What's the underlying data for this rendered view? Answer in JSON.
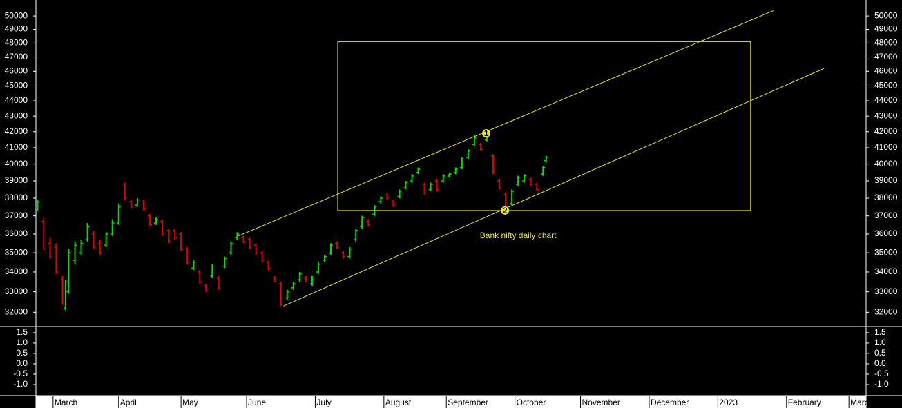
{
  "chart_data": {
    "type": "ohlc",
    "log_scale": true,
    "up_color": "#00e000",
    "down_color": "#e00000",
    "annotation_color": "#e8e820",
    "x": [
      0,
      2,
      4,
      6,
      8,
      9,
      10,
      12,
      14,
      16,
      18,
      20,
      22,
      24,
      26,
      28,
      30,
      32,
      34,
      36,
      38,
      40,
      42,
      44,
      46,
      48,
      50,
      52,
      54,
      56,
      58,
      60,
      62,
      64,
      66,
      68,
      70,
      72,
      74,
      76,
      78,
      80,
      82,
      84,
      86,
      88,
      90,
      92,
      94,
      96,
      98,
      100,
      102,
      104,
      106,
      108,
      110,
      112,
      114,
      116,
      118,
      120,
      122,
      124,
      126,
      128,
      130,
      132,
      134,
      136,
      138,
      140,
      142,
      144,
      146,
      148,
      150,
      152,
      154,
      156,
      158,
      160,
      162,
      163
    ],
    "open": [
      37500,
      36700,
      35500,
      35300,
      33600,
      32200,
      33000,
      34600,
      35000,
      35700,
      36000,
      35500,
      35400,
      36000,
      36600,
      38800,
      37800,
      37600,
      37800,
      37000,
      36600,
      36700,
      36200,
      36200,
      36000,
      35200,
      34200,
      34000,
      33300,
      33800,
      33700,
      34300,
      35000,
      35800,
      35800,
      35700,
      35400,
      35000,
      34500,
      33700,
      33400,
      32700,
      33200,
      33600,
      33700,
      33400,
      34000,
      34600,
      35000,
      35500,
      35000,
      34800,
      35700,
      36400,
      36700,
      37100,
      37800,
      38200,
      37800,
      38100,
      38600,
      39000,
      39500,
      38800,
      38500,
      39000,
      39000,
      39300,
      39500,
      39800,
      40400,
      41200,
      41200,
      41500,
      40500,
      39000,
      38200,
      37700,
      38800,
      39000,
      39100,
      38800,
      39400,
      40200
    ],
    "high": [
      37900,
      36900,
      35800,
      35500,
      33800,
      33600,
      35200,
      35600,
      35700,
      36600,
      36200,
      35700,
      36100,
      36800,
      37700,
      38900,
      37900,
      38000,
      37900,
      37100,
      36900,
      36800,
      36300,
      36300,
      36100,
      35300,
      34600,
      34100,
      33400,
      34400,
      33800,
      34800,
      35600,
      36100,
      35900,
      35800,
      35500,
      35100,
      34600,
      33800,
      33500,
      33100,
      33500,
      34000,
      33800,
      33800,
      34500,
      34900,
      35500,
      35600,
      35100,
      35300,
      36300,
      37000,
      36800,
      37600,
      38100,
      38300,
      37900,
      38500,
      39000,
      39400,
      39800,
      38900,
      38900,
      39100,
      39400,
      39500,
      39800,
      40400,
      40900,
      41800,
      41300,
      41900,
      40600,
      39100,
      38300,
      38500,
      39300,
      39400,
      39200,
      38900,
      39900,
      40500
    ],
    "low": [
      37300,
      35200,
      34700,
      33900,
      32400,
      32100,
      32900,
      34400,
      34900,
      35600,
      35200,
      34900,
      35300,
      35900,
      36500,
      37900,
      37400,
      37500,
      37300,
      36400,
      36500,
      35900,
      35500,
      35700,
      35100,
      34400,
      34100,
      33400,
      33000,
      33700,
      33100,
      34200,
      34900,
      35700,
      35500,
      35200,
      34900,
      34500,
      34100,
      33500,
      32300,
      32600,
      33100,
      33500,
      33500,
      33300,
      33900,
      34500,
      34900,
      35200,
      34700,
      34700,
      35600,
      36300,
      36400,
      37000,
      37700,
      37900,
      37500,
      38000,
      38500,
      38900,
      39400,
      38200,
      38400,
      38400,
      38900,
      39200,
      39400,
      39700,
      40300,
      41100,
      40800,
      41400,
      39400,
      38500,
      37300,
      37600,
      38700,
      38900,
      38700,
      38400,
      39300,
      40100
    ],
    "close": [
      37800,
      35200,
      34800,
      34000,
      32400,
      33500,
      35000,
      35400,
      35500,
      36400,
      35300,
      35000,
      36000,
      36600,
      37500,
      38000,
      37500,
      37900,
      37400,
      36500,
      36800,
      36000,
      35600,
      35800,
      35200,
      34500,
      34500,
      33500,
      33100,
      34300,
      33200,
      34700,
      35500,
      36000,
      35600,
      35300,
      35000,
      34600,
      34200,
      33600,
      32700,
      33000,
      33400,
      33900,
      33600,
      33700,
      34400,
      34800,
      35400,
      35300,
      34800,
      35200,
      36200,
      36900,
      36500,
      37500,
      38000,
      38000,
      37600,
      38400,
      38900,
      39300,
      39700,
      38300,
      38800,
      38500,
      39300,
      39400,
      39700,
      40300,
      40800,
      41600,
      40900,
      41700,
      39500,
      38600,
      37500,
      38400,
      39200,
      39300,
      38800,
      38500,
      39800,
      40400
    ],
    "ylim": [
      31350,
      50950
    ],
    "yticks": [
      32000,
      33000,
      34000,
      35000,
      36000,
      37000,
      38000,
      39000,
      40000,
      41000,
      42000,
      43000,
      44000,
      45000,
      46000,
      47000,
      48000,
      49000,
      50000
    ],
    "xlim": [
      -0.5,
      265.5
    ],
    "xticks": [
      {
        "value": 5,
        "label": "March"
      },
      {
        "value": 26,
        "label": "April"
      },
      {
        "value": 46,
        "label": "May"
      },
      {
        "value": 67,
        "label": "June"
      },
      {
        "value": 89,
        "label": "July"
      },
      {
        "value": 111,
        "label": "August"
      },
      {
        "value": 131,
        "label": "September"
      },
      {
        "value": 153,
        "label": "October"
      },
      {
        "value": 174,
        "label": "November"
      },
      {
        "value": 196,
        "label": "December"
      },
      {
        "value": 218,
        "label": "2023"
      },
      {
        "value": 240,
        "label": "February"
      },
      {
        "value": 260,
        "label": "March"
      }
    ],
    "trendlines": [
      {
        "x": [
          64.4,
          235.8
        ],
        "y": [
          35900,
          50400
        ]
      },
      {
        "x": [
          78.8,
          252
        ],
        "y": [
          32300,
          46200
        ]
      }
    ],
    "box": {
      "x": [
        96.2,
        228.5
      ],
      "y": [
        48100,
        37300
      ]
    },
    "points": [
      {
        "label": "1",
        "x": 143.8,
        "y": 41900
      },
      {
        "label": "2",
        "x": 149.8,
        "y": 37300
      }
    ],
    "annotation": {
      "text": "Bank nifty daily chart",
      "x": 154,
      "y": 35900
    },
    "indicator": {
      "ylim": [
        -1.5,
        1.73
      ],
      "yticks": [
        1.5,
        {
          "value": 1,
          "label": "1.0"
        },
        0.5,
        {
          "value": 0,
          "label": "0.0"
        },
        -0.5,
        {
          "value": -1,
          "label": "-1.0"
        }
      ]
    }
  }
}
